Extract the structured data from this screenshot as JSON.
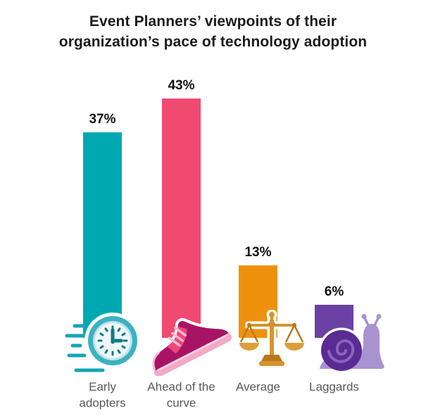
{
  "title": {
    "line1": "Event Planners’ viewpoints of their",
    "line2": "organization’s pace of technology adoption"
  },
  "colors": {
    "background": "#ffffff",
    "title_text": "#1b1b1b",
    "value_text": "#111111",
    "category_text": "#58595b"
  },
  "chart_data": {
    "type": "bar",
    "title": "Event Planners’ viewpoints of their organization’s pace of technology adoption",
    "categories": [
      "Early adopters",
      "Ahead of the curve",
      "Average",
      "Laggards"
    ],
    "values": [
      37,
      43,
      13,
      6
    ],
    "value_labels": [
      "37%",
      "43%",
      "13%",
      "6%"
    ],
    "unit": "%",
    "ylim": [
      0,
      45
    ],
    "grid": false,
    "legend": false,
    "axes_shown": false,
    "bar_colors": [
      "#00a9b2",
      "#f04a70",
      "#ee920e",
      "#6b41a5"
    ],
    "icons": [
      {
        "name": "fast-clock-icon",
        "palette": {
          "main": "#3db1bf",
          "dark": "#0c7c89",
          "light": "#bfe4e9",
          "face": "#eef7f8",
          "speed": "#14a5b4"
        }
      },
      {
        "name": "running-shoe-icon",
        "palette": {
          "body": "#a81465",
          "accent": "#ef4878",
          "sole": "#f2a9c4",
          "sole_light": "#fad2e2",
          "laces": "#f6bcd2"
        }
      },
      {
        "name": "balance-scale-icon",
        "palette": {
          "main": "#d4952e",
          "dark": "#b87718",
          "pan": "#dd9e3a"
        }
      },
      {
        "name": "snail-icon",
        "palette": {
          "shell": "#5a2b93",
          "spiral": "#8a63bd",
          "body": "#a793cf"
        }
      }
    ]
  }
}
